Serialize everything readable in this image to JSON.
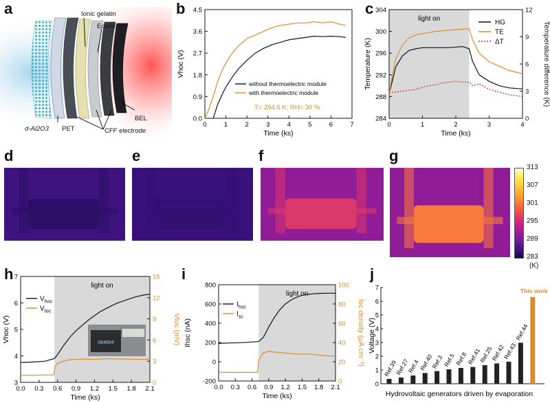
{
  "panels": {
    "a": "a",
    "b": "b",
    "c": "c",
    "d": "d",
    "e": "e",
    "f": "f",
    "g": "g",
    "h": "h",
    "i": "i",
    "j": "j"
  },
  "schematic": {
    "labels": {
      "ionic_gelatin": "Ionic gelatin",
      "ecoflex": "Ecoflex",
      "bel": "BEL",
      "al2o3": "d-Al2O3",
      "pet": "PET",
      "cff": "CFF electrode"
    }
  },
  "colors": {
    "black": "#111111",
    "orange": "#e08a2c",
    "red": "#cc2a2a",
    "shade": "#d9d9d9"
  },
  "thermal": {
    "scale_ticks": [
      "313",
      "307",
      "301",
      "295",
      "289",
      "283"
    ],
    "unit": "(K)",
    "vmin": 283,
    "vmax": 313,
    "images": [
      {
        "label": "d",
        "background_K": 289.5,
        "device_K": 286.5
      },
      {
        "label": "e",
        "background_K": 289.0,
        "device_K": 288.0
      },
      {
        "label": "f",
        "background_K": 296.0,
        "device_K": 301.5
      },
      {
        "label": "g",
        "background_K": 296.0,
        "device_K": 305.5
      }
    ]
  },
  "chart_data": [
    {
      "id": "b",
      "type": "line",
      "xlabel": "Time (ks)",
      "ylabel": "Vhoc (V)",
      "xlim": [
        0,
        7
      ],
      "ylim": [
        0,
        4.5
      ],
      "xticks": [
        "0",
        "1",
        "2",
        "3",
        "4",
        "5",
        "6",
        "7"
      ],
      "yticks": [
        "0.0",
        "0.9",
        "1.8",
        "2.7",
        "3.6",
        "4.5"
      ],
      "annotation": "T= 294.6 K; RH= 30 %",
      "legend": [
        "without thermoelectric module",
        "with thermoelectric module"
      ],
      "series": [
        {
          "name": "without thermoelectric module",
          "color": "#111111",
          "x": [
            0.4,
            0.6,
            0.8,
            1.0,
            1.3,
            1.6,
            2.0,
            2.4,
            2.8,
            3.2,
            3.6,
            4.0,
            4.4,
            4.8,
            5.2,
            5.6,
            6.0,
            6.4,
            6.7
          ],
          "y": [
            0.0,
            0.55,
            0.95,
            1.3,
            1.7,
            2.05,
            2.4,
            2.7,
            2.9,
            3.05,
            3.15,
            3.25,
            3.3,
            3.35,
            3.4,
            3.38,
            3.4,
            3.38,
            3.35
          ]
        },
        {
          "name": "with thermoelectric module",
          "color": "#e08a2c",
          "x": [
            0.0,
            0.2,
            0.4,
            0.6,
            0.8,
            1.0,
            1.3,
            1.6,
            2.0,
            2.4,
            2.8,
            3.2,
            3.6,
            4.0,
            4.4,
            4.8,
            5.2,
            5.6,
            6.0,
            6.4,
            6.7
          ],
          "y": [
            0.0,
            0.4,
            0.9,
            1.5,
            1.95,
            2.3,
            2.7,
            3.0,
            3.3,
            3.45,
            3.6,
            3.75,
            3.85,
            3.9,
            3.95,
            3.95,
            4.0,
            3.95,
            4.0,
            3.9,
            3.85
          ]
        }
      ]
    },
    {
      "id": "c",
      "type": "line",
      "xlabel": "Time (ks)",
      "ylabel": "Temperature (K)",
      "y2label": "Temperature difference (K)",
      "xlim": [
        0,
        4
      ],
      "ylim": [
        284,
        304
      ],
      "y2lim": [
        0,
        12
      ],
      "xticks": [
        "0",
        "1",
        "2",
        "3",
        "4"
      ],
      "yticks": [
        "284",
        "288",
        "292",
        "296",
        "300",
        "304"
      ],
      "y2ticks": [
        "0",
        "3",
        "6",
        "9",
        "12"
      ],
      "shade": [
        0,
        2.4
      ],
      "shade_label": "light on",
      "legend": [
        "HG",
        "TE",
        "ΔT"
      ],
      "series": [
        {
          "name": "HG",
          "color": "#111111",
          "axis": "left",
          "x": [
            0,
            0.1,
            0.2,
            0.4,
            0.6,
            0.8,
            1.0,
            1.4,
            1.8,
            2.2,
            2.4,
            2.5,
            2.7,
            3.0,
            3.3,
            3.6,
            4.0
          ],
          "y": [
            288.5,
            291.0,
            293.5,
            295.5,
            296.5,
            296.8,
            297.0,
            297.0,
            297.0,
            297.2,
            296.8,
            294.5,
            292.0,
            290.8,
            290.0,
            289.6,
            289.4
          ]
        },
        {
          "name": "TE",
          "color": "#e08a2c",
          "axis": "left",
          "x": [
            0,
            0.1,
            0.2,
            0.4,
            0.6,
            0.8,
            1.0,
            1.4,
            1.8,
            2.2,
            2.4,
            2.5,
            2.7,
            3.0,
            3.3,
            3.6,
            4.0
          ],
          "y": [
            288.5,
            292.0,
            295.0,
            297.5,
            298.8,
            299.3,
            299.6,
            300.0,
            300.2,
            300.4,
            300.5,
            298.5,
            296.0,
            294.4,
            293.6,
            292.8,
            292.2
          ]
        },
        {
          "name": "ΔT",
          "color": "#cc2a2a",
          "axis": "right",
          "dash": true,
          "x": [
            0,
            0.2,
            0.4,
            0.6,
            0.8,
            1.0,
            1.2,
            1.4,
            1.6,
            1.8,
            2.0,
            2.2,
            2.4,
            2.5,
            2.7,
            3.0,
            3.3,
            3.6,
            4.0
          ],
          "y": [
            2.8,
            2.9,
            3.0,
            3.1,
            3.2,
            3.4,
            3.6,
            3.7,
            3.9,
            4.0,
            4.1,
            4.0,
            4.0,
            3.6,
            3.8,
            3.2,
            2.9,
            2.6,
            2.4
          ]
        }
      ]
    },
    {
      "id": "h",
      "type": "line",
      "xlabel": "Time (ks)",
      "ylabel": "Vhoc (V)",
      "y2label": "Vtoc (mV)",
      "xlim": [
        0,
        2.1
      ],
      "ylim": [
        3,
        7
      ],
      "y2lim": [
        0,
        15
      ],
      "xticks": [
        "0.0",
        "0.3",
        "0.6",
        "0.9",
        "1.2",
        "1.5",
        "1.8",
        "2.1"
      ],
      "yticks": [
        "3",
        "4",
        "5",
        "6",
        "7"
      ],
      "y2ticks": [
        "0",
        "3",
        "6",
        "9",
        "12",
        "15"
      ],
      "shade": [
        0.55,
        2.1
      ],
      "shade_label": "light on",
      "legend": [
        "Vhoc",
        "Vtoc"
      ],
      "inset_text": "064604",
      "series": [
        {
          "name": "Vhoc",
          "color": "#111111",
          "axis": "left",
          "x": [
            0,
            0.2,
            0.4,
            0.55,
            0.6,
            0.7,
            0.8,
            0.9,
            1.0,
            1.1,
            1.2,
            1.3,
            1.4,
            1.5,
            1.6,
            1.7,
            1.8,
            1.9,
            2.0,
            2.1
          ],
          "y": [
            3.75,
            3.77,
            3.8,
            3.9,
            4.05,
            4.4,
            4.7,
            4.95,
            5.15,
            5.35,
            5.52,
            5.68,
            5.8,
            5.92,
            6.02,
            6.1,
            6.18,
            6.25,
            6.3,
            6.33
          ]
        },
        {
          "name": "Vtoc",
          "color": "#e08a2c",
          "axis": "right",
          "x": [
            0,
            0.2,
            0.4,
            0.54,
            0.56,
            0.6,
            0.7,
            0.8,
            1.0,
            1.2,
            1.4,
            1.6,
            1.8,
            2.0,
            2.1
          ],
          "y": [
            1.0,
            1.0,
            1.05,
            1.05,
            2.2,
            2.7,
            3.0,
            3.2,
            3.3,
            3.25,
            3.35,
            3.3,
            3.3,
            3.25,
            3.3
          ]
        }
      ]
    },
    {
      "id": "i",
      "type": "line",
      "xlabel": "Time (ks)",
      "ylabel": "Ihsc (nA)",
      "y2label": "Isc density (μA cm⁻²)",
      "xlim": [
        0,
        2.1
      ],
      "ylim": [
        -200,
        800
      ],
      "y2lim": [
        0,
        100
      ],
      "xticks": [
        "0.0",
        "0.3",
        "0.6",
        "0.9",
        "1.2",
        "1.5",
        "1.8",
        "2.1"
      ],
      "yticks": [
        "-200",
        "0",
        "200",
        "400",
        "600",
        "800"
      ],
      "y2ticks": [
        "0",
        "20",
        "40",
        "60",
        "80",
        "100"
      ],
      "shade": [
        0.72,
        2.1
      ],
      "shade_label": "light on",
      "legend": [
        "Ihsc",
        "Isc"
      ],
      "series": [
        {
          "name": "Ihsc",
          "color": "#111111",
          "axis": "left",
          "x": [
            0,
            0.2,
            0.4,
            0.6,
            0.72,
            0.8,
            0.9,
            1.0,
            1.1,
            1.2,
            1.3,
            1.4,
            1.5,
            1.6,
            1.7,
            1.8,
            2.0,
            2.1
          ],
          "y": [
            190,
            195,
            198,
            205,
            210,
            250,
            360,
            460,
            540,
            600,
            640,
            670,
            690,
            700,
            705,
            710,
            712,
            712
          ]
        },
        {
          "name": "Isc",
          "color": "#e08a2c",
          "axis": "right",
          "x": [
            0,
            0.2,
            0.4,
            0.6,
            0.7,
            0.72,
            0.8,
            0.9,
            1.0,
            1.2,
            1.4,
            1.6,
            1.8,
            2.0,
            2.1
          ],
          "y": [
            9,
            9,
            9,
            9,
            9,
            22,
            29,
            31,
            30,
            29,
            28,
            28,
            27,
            26,
            26
          ]
        }
      ]
    },
    {
      "id": "j",
      "type": "bar",
      "xlabel": "Hydrovoltaic generators driven by evaporation",
      "ylabel": "Voltage (V)",
      "ylim": [
        0,
        7
      ],
      "yticks": [
        "0",
        "1",
        "2",
        "3",
        "4",
        "5",
        "6",
        "7"
      ],
      "highlight_label": "This work",
      "categories": [
        "Ref.39",
        "Ref.27",
        "Ref.4",
        "Ref.40",
        "Ref.3",
        "Ref.5",
        "Ref.8",
        "Ref.41",
        "Ref.25",
        "Ref.42",
        "Ref.43",
        "Ref.44",
        "This work"
      ],
      "values": [
        0.35,
        0.45,
        0.6,
        0.78,
        0.92,
        1.05,
        1.15,
        1.22,
        1.35,
        1.48,
        1.6,
        2.98,
        6.3
      ]
    }
  ]
}
